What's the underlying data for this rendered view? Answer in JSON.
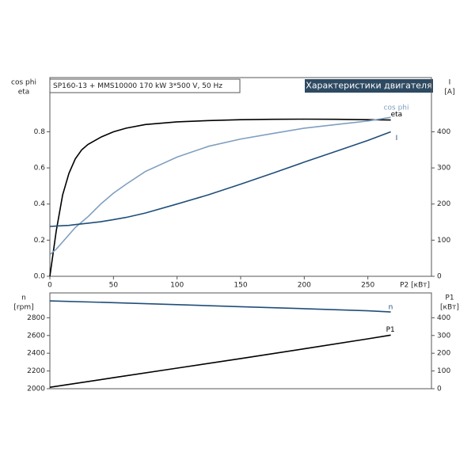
{
  "chart_data": [
    {
      "type": "line",
      "title": "SP160-13 + MMS10000   170 kW   3*500 V, 50 Hz",
      "subtitle": "Характеристики двигателя",
      "y_label": [
        "cos phi",
        "eta"
      ],
      "y2_label": [
        "I",
        "[A]"
      ],
      "x_label": "P2 [кВт]",
      "x": [
        0,
        5,
        10,
        15,
        20,
        25,
        30,
        40,
        50,
        60,
        75,
        100,
        125,
        150,
        175,
        200,
        225,
        250,
        268
      ],
      "series": [
        {
          "name": "eta",
          "color": "#000000",
          "values": [
            0,
            0.25,
            0.45,
            0.57,
            0.65,
            0.7,
            0.73,
            0.77,
            0.8,
            0.82,
            0.84,
            0.855,
            0.862,
            0.867,
            0.869,
            0.87,
            0.869,
            0.867,
            0.865
          ]
        },
        {
          "name": "cos phi",
          "color": "#7f9fbf",
          "values": [
            0.12,
            0.15,
            0.19,
            0.23,
            0.27,
            0.3,
            0.33,
            0.4,
            0.46,
            0.51,
            0.58,
            0.66,
            0.72,
            0.76,
            0.79,
            0.82,
            0.84,
            0.86,
            0.88
          ]
        },
        {
          "name": "I",
          "color": "#1f4e79",
          "axis": "y2",
          "values": [
            138,
            139,
            140,
            141,
            143,
            145,
            147,
            151,
            157,
            163,
            175,
            200,
            226,
            255,
            285,
            316,
            346,
            376,
            400
          ]
        }
      ],
      "xlim": [
        0,
        300
      ],
      "xticks": [
        0,
        50,
        100,
        150,
        200,
        250
      ],
      "ylim": [
        0,
        1.1
      ],
      "yticks": [
        {
          "value": 0,
          "label": "0.0"
        },
        0.2,
        0.4,
        0.6,
        0.8
      ],
      "y2lim": [
        0,
        550
      ],
      "y2ticks": [
        0,
        100,
        200,
        300,
        400
      ]
    },
    {
      "type": "line",
      "y_label": [
        "n",
        "[rpm]"
      ],
      "y2_label": [
        "P1",
        "[кВт]"
      ],
      "x": [
        0,
        50,
        100,
        150,
        200,
        250,
        268
      ],
      "series": [
        {
          "name": "n",
          "color": "#1f4e79",
          "values": [
            2990,
            2970,
            2948,
            2925,
            2902,
            2878,
            2865
          ]
        },
        {
          "name": "P1",
          "color": "#000000",
          "axis": "y2",
          "values": [
            8,
            62,
            116,
            170,
            225,
            281,
            302
          ]
        }
      ],
      "xlim": [
        0,
        300
      ],
      "ylim": [
        2000,
        3080
      ],
      "yticks": [
        2000,
        2200,
        2400,
        2600,
        2800
      ],
      "y2lim": [
        0,
        540
      ],
      "y2ticks": [
        0,
        100,
        200,
        300,
        400
      ]
    }
  ]
}
